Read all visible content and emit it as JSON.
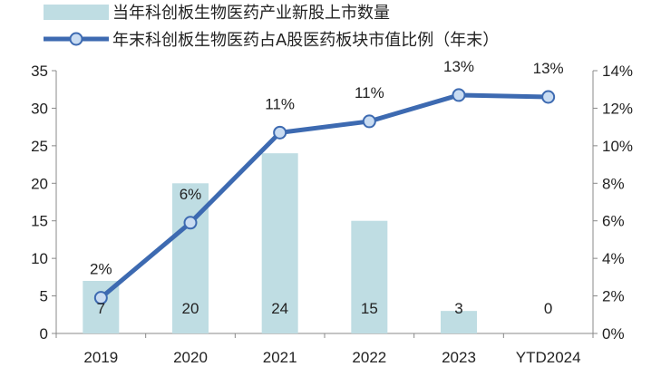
{
  "chart_data": {
    "type": "bar+line",
    "categories": [
      "2019",
      "2020",
      "2021",
      "2022",
      "2023",
      "YTD2024"
    ],
    "bar_series": {
      "name": "当年科创板生物医药产业新股上市数量",
      "values": [
        7,
        20,
        24,
        15,
        3,
        0
      ],
      "data_labels": [
        "7",
        "20",
        "24",
        "15",
        "3",
        "0"
      ],
      "color": "#bfdde3"
    },
    "line_series": {
      "name": "年末科创板生物医药占A股医药板块市值比例（年末）",
      "values": [
        1.9,
        5.9,
        10.7,
        11.3,
        12.7,
        12.6
      ],
      "data_labels": [
        "2%",
        "6%",
        "11%",
        "11%",
        "13%",
        "13%"
      ],
      "color": "#3d6ab1",
      "marker_fill": "#c9dcf2"
    },
    "y_left": {
      "min": 0,
      "max": 35,
      "step": 5,
      "tick_labels": [
        "0",
        "5",
        "10",
        "15",
        "20",
        "25",
        "30",
        "35"
      ]
    },
    "y_right": {
      "min": 0,
      "max": 14,
      "step": 2,
      "tick_labels": [
        "0%",
        "2%",
        "4%",
        "6%",
        "8%",
        "10%",
        "12%",
        "14%"
      ]
    },
    "legend_position": "top-left",
    "grid": false
  }
}
